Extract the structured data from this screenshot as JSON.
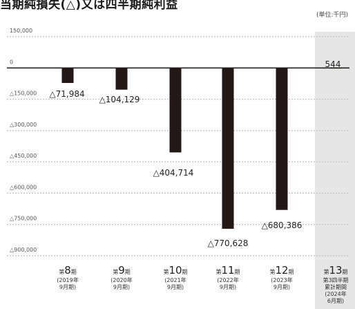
{
  "header": {
    "title": "当期純損失(△)又は四半期純利益",
    "unit": "(単位:千円)"
  },
  "chart_data": {
    "type": "bar",
    "title": "当期純損失(△)又は四半期純利益",
    "unit": "(単位:千円)",
    "ylim": [
      -900000,
      150000
    ],
    "y_ticks": [
      {
        "value": 150000,
        "label": "150,000"
      },
      {
        "value": 0,
        "label": "0"
      },
      {
        "value": -150000,
        "label": "△150,000"
      },
      {
        "value": -300000,
        "label": "△300,000"
      },
      {
        "value": -450000,
        "label": "△450,000"
      },
      {
        "value": -600000,
        "label": "△600,000"
      },
      {
        "value": -750000,
        "label": "△750,000"
      },
      {
        "value": -900000,
        "label": "△900,000"
      }
    ],
    "categories": [
      {
        "pre": "第",
        "num": "8",
        "post": "期",
        "sub": [
          "(2019年",
          "9月期)"
        ]
      },
      {
        "pre": "第",
        "num": "9",
        "post": "期",
        "sub": [
          "(2020年",
          "9月期)"
        ]
      },
      {
        "pre": "第",
        "num": "10",
        "post": "期",
        "sub": [
          "(2021年",
          "9月期)"
        ]
      },
      {
        "pre": "第",
        "num": "11",
        "post": "期",
        "sub": [
          "(2022年",
          "9月期)"
        ]
      },
      {
        "pre": "第",
        "num": "12",
        "post": "期",
        "sub": [
          "(2023年",
          "9月期)"
        ]
      },
      {
        "pre": "第",
        "num": "13",
        "post": "期",
        "sub": [
          "第3四半期",
          "累計期間",
          "(2024年",
          "6月期)"
        ]
      }
    ],
    "values": [
      -71984,
      -104129,
      -404714,
      -770628,
      -680386,
      544
    ],
    "value_labels": [
      "△71,984",
      "△104,129",
      "△404,714",
      "△770,628",
      "△680,386",
      "544"
    ],
    "highlight_index": 5,
    "colors": {
      "bar": "#231815",
      "highlight_bg": "#e6e6e6",
      "zero_line": "#222222",
      "grid": "#b0b0b0"
    }
  }
}
